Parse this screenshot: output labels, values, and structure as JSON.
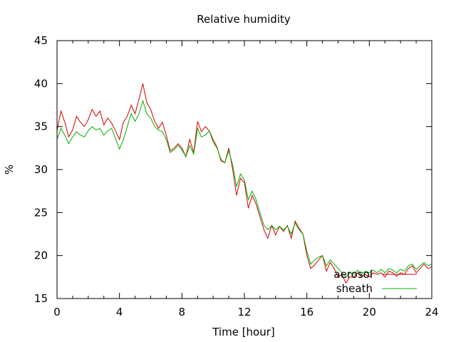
{
  "chart_data": {
    "type": "line",
    "title": "Relative humidity",
    "xlabel": "Time [hour]",
    "ylabel": "%",
    "xlim": [
      0,
      24
    ],
    "ylim": [
      15,
      45
    ],
    "xticks": [
      0,
      4,
      8,
      12,
      16,
      20,
      24
    ],
    "yticks": [
      15,
      20,
      25,
      30,
      35,
      40,
      45
    ],
    "grid": false,
    "legend_position": "bottom-right",
    "series": [
      {
        "name": "aerosol",
        "color": "#d40000",
        "x": [
          0,
          0.25,
          0.5,
          0.75,
          1,
          1.25,
          1.5,
          1.75,
          2,
          2.25,
          2.5,
          2.75,
          3,
          3.25,
          3.5,
          3.75,
          4,
          4.25,
          4.5,
          4.75,
          5,
          5.25,
          5.5,
          5.75,
          6,
          6.25,
          6.5,
          6.75,
          7,
          7.25,
          7.5,
          7.75,
          8,
          8.25,
          8.5,
          8.75,
          9,
          9.25,
          9.5,
          9.75,
          10,
          10.25,
          10.5,
          10.75,
          11,
          11.25,
          11.5,
          11.75,
          12,
          12.25,
          12.5,
          12.75,
          13,
          13.25,
          13.5,
          13.75,
          14,
          14.25,
          14.5,
          14.75,
          15,
          15.25,
          15.5,
          15.75,
          16,
          16.25,
          16.5,
          16.75,
          17,
          17.25,
          17.5,
          17.75,
          18,
          18.25,
          18.5,
          18.75,
          19,
          19.25,
          19.5,
          19.75,
          20,
          20.25,
          20.5,
          20.75,
          21,
          21.25,
          21.5,
          21.75,
          22,
          22.25,
          22.5,
          22.75,
          23,
          23.25,
          23.5,
          23.75,
          24
        ],
        "y": [
          34.5,
          36.8,
          35.5,
          33.8,
          34.6,
          36.2,
          35.5,
          35.0,
          35.8,
          37.0,
          36.2,
          36.8,
          35.2,
          36.0,
          35.4,
          34.5,
          33.5,
          35.5,
          36.2,
          37.5,
          36.5,
          38.2,
          40.0,
          37.8,
          37.0,
          35.6,
          34.8,
          35.5,
          34.0,
          32.2,
          32.5,
          33.0,
          32.5,
          31.5,
          33.5,
          32.0,
          35.6,
          34.4,
          35.0,
          34.5,
          33.5,
          32.6,
          31.0,
          30.8,
          32.5,
          30.0,
          27.0,
          29.0,
          28.5,
          25.5,
          27.0,
          26.0,
          24.5,
          23.0,
          22.0,
          23.5,
          22.4,
          23.4,
          22.8,
          23.5,
          22.0,
          24.0,
          23.2,
          22.5,
          20.0,
          18.5,
          18.9,
          19.5,
          20.0,
          18.2,
          19.2,
          18.5,
          17.5,
          17.8,
          16.8,
          17.5,
          17.5,
          18.0,
          17.5,
          17.8,
          17.5,
          18.0,
          17.8,
          18.0,
          17.5,
          18.2,
          18.0,
          17.6,
          18.0,
          17.8,
          18.5,
          18.8,
          18.0,
          18.5,
          19.0,
          18.5,
          18.7
        ]
      },
      {
        "name": "sheath",
        "color": "#00b000",
        "x": [
          0,
          0.25,
          0.5,
          0.75,
          1,
          1.25,
          1.5,
          1.75,
          2,
          2.25,
          2.5,
          2.75,
          3,
          3.25,
          3.5,
          3.75,
          4,
          4.25,
          4.5,
          4.75,
          5,
          5.25,
          5.5,
          5.75,
          6,
          6.25,
          6.5,
          6.75,
          7,
          7.25,
          7.5,
          7.75,
          8,
          8.25,
          8.5,
          8.75,
          9,
          9.25,
          9.5,
          9.75,
          10,
          10.25,
          10.5,
          10.75,
          11,
          11.25,
          11.5,
          11.75,
          12,
          12.25,
          12.5,
          12.75,
          13,
          13.25,
          13.5,
          13.75,
          14,
          14.25,
          14.5,
          14.75,
          15,
          15.25,
          15.5,
          15.75,
          16,
          16.25,
          16.5,
          16.75,
          17,
          17.25,
          17.5,
          17.75,
          18,
          18.25,
          18.5,
          18.75,
          19,
          19.25,
          19.5,
          19.75,
          20,
          20.25,
          20.5,
          20.75,
          21,
          21.25,
          21.5,
          21.75,
          22,
          22.25,
          22.5,
          22.75,
          23,
          23.25,
          23.5,
          23.75,
          24
        ],
        "y": [
          33.5,
          34.8,
          34.0,
          33.0,
          33.8,
          34.4,
          34.0,
          33.8,
          34.5,
          35.0,
          34.6,
          34.8,
          34.0,
          34.5,
          34.8,
          33.6,
          32.4,
          33.5,
          35.0,
          36.5,
          35.6,
          36.5,
          38.0,
          36.5,
          36.0,
          35.0,
          34.6,
          34.4,
          33.5,
          32.0,
          32.3,
          32.8,
          32.3,
          31.5,
          32.8,
          31.8,
          34.8,
          33.8,
          34.0,
          34.5,
          33.2,
          32.5,
          31.2,
          30.8,
          32.2,
          30.5,
          28.0,
          29.5,
          28.8,
          26.5,
          27.5,
          26.5,
          25.0,
          23.5,
          23.0,
          23.5,
          23.0,
          23.4,
          23.0,
          23.4,
          22.5,
          23.8,
          23.0,
          22.5,
          20.5,
          19.0,
          19.5,
          19.8,
          20.0,
          18.8,
          19.5,
          19.0,
          18.5,
          18.0,
          17.5,
          18.0,
          17.8,
          18.3,
          17.8,
          18.2,
          18.0,
          18.3,
          18.0,
          18.4,
          18.0,
          18.5,
          18.3,
          18.0,
          18.4,
          18.2,
          18.8,
          19.0,
          18.4,
          18.8,
          19.2,
          18.8,
          19.0
        ]
      }
    ]
  }
}
